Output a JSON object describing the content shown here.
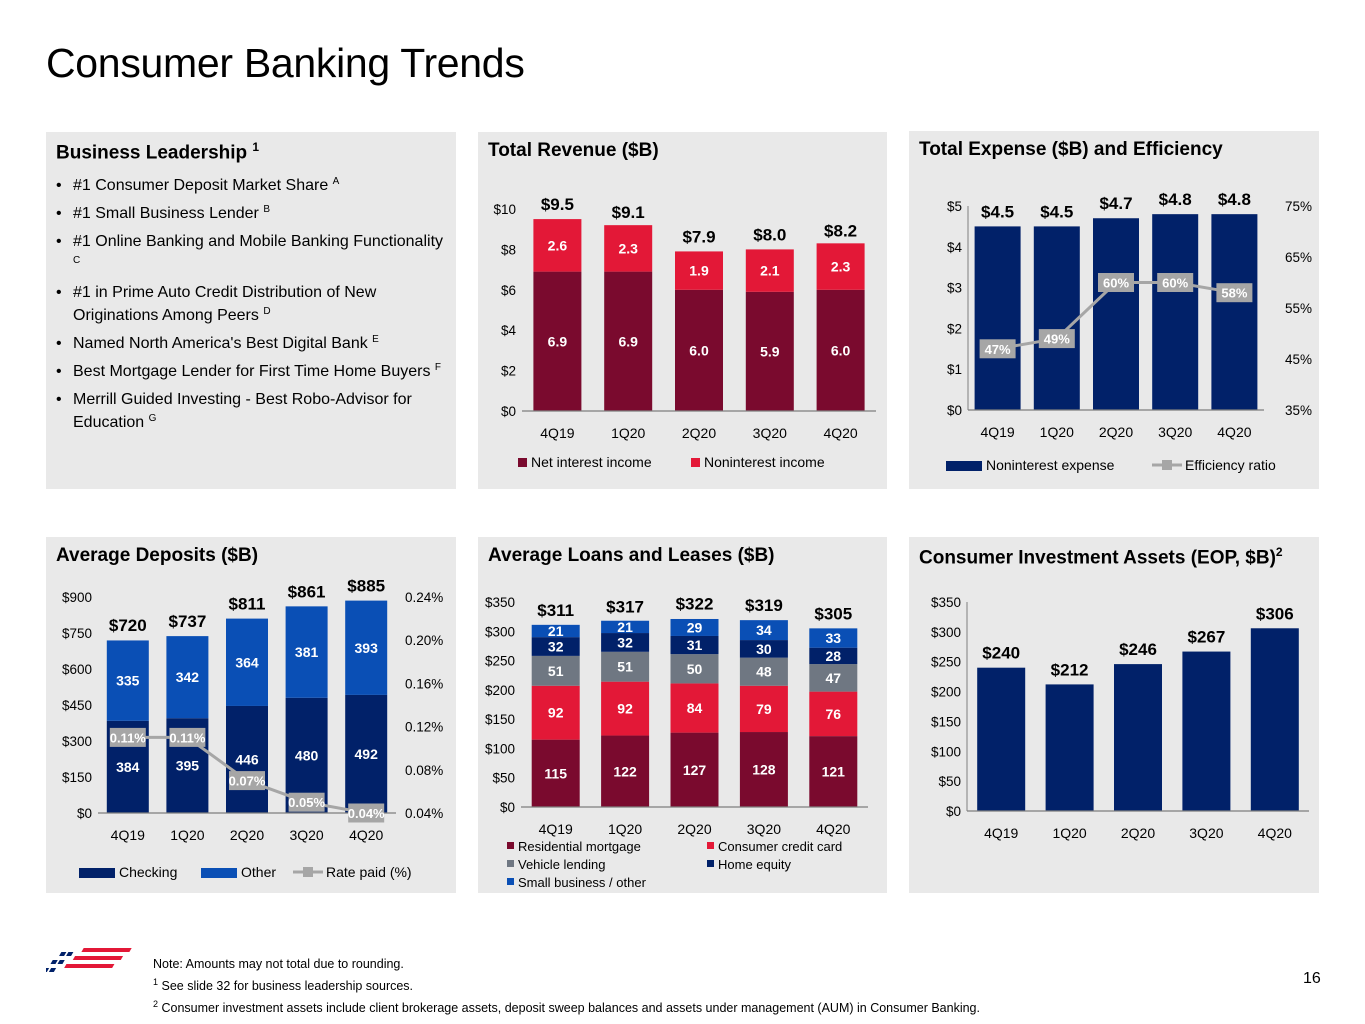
{
  "page": {
    "title": "Consumer Banking Trends",
    "page_number": "16",
    "notes": [
      "Note: Amounts may not total due to rounding.",
      "See slide 32 for business leadership sources.",
      "Consumer investment assets include client brokerage assets, deposit sweep balances and assets under management (AUM) in Consumer Banking."
    ],
    "note_markers": [
      "1",
      "2"
    ]
  },
  "colors": {
    "panel_bg": "#e9e9e9",
    "navy": "#012169",
    "dark_red": "#7a0a2e",
    "red": "#e31837",
    "blue": "#0a4fb5",
    "gray": "#6f7782",
    "line_gray": "#a6a6a6"
  },
  "leadership": {
    "title": "Business Leadership",
    "title_marker": "1",
    "items": [
      {
        "text": "#1 Consumer Deposit Market Share",
        "marker": "A"
      },
      {
        "text": "#1 Small Business Lender",
        "marker": "B"
      },
      {
        "text": "#1 Online Banking and Mobile Banking Functionality",
        "marker": "C"
      },
      {
        "text": "#1 in Prime Auto Credit Distribution of New Originations Among Peers",
        "marker": "D"
      },
      {
        "text": "Named North America's Best Digital Bank",
        "marker": "E"
      },
      {
        "text": "Best Mortgage Lender for First Time Home Buyers",
        "marker": "F"
      },
      {
        "text": "Merrill Guided Investing - Best Robo-Advisor for Education",
        "marker": "G"
      }
    ]
  },
  "chart_data": [
    {
      "id": "revenue",
      "type": "bar",
      "stacked": true,
      "title": "Total Revenue ($B)",
      "categories": [
        "4Q19",
        "1Q20",
        "2Q20",
        "3Q20",
        "4Q20"
      ],
      "series": [
        {
          "name": "Net interest income",
          "color": "#7a0a2e",
          "values": [
            6.9,
            6.9,
            6.0,
            5.9,
            6.0
          ],
          "labels": [
            "6.9",
            "6.9",
            "6.0",
            "5.9",
            "6.0"
          ]
        },
        {
          "name": "Noninterest income",
          "color": "#e31837",
          "values": [
            2.6,
            2.3,
            1.9,
            2.1,
            2.3
          ],
          "labels": [
            "2.6",
            "2.3",
            "1.9",
            "2.1",
            "2.3"
          ]
        }
      ],
      "totals": [
        "$9.5",
        "$9.1",
        "$7.9",
        "$8.0",
        "$8.2"
      ],
      "total_values": [
        9.5,
        9.1,
        7.9,
        8.0,
        8.2
      ],
      "ylim": [
        0,
        10
      ],
      "y_ticks": [
        0,
        2,
        4,
        6,
        8,
        10
      ],
      "y_tick_labels": [
        "$0",
        "$2",
        "$4",
        "$6",
        "$8",
        "$10"
      ],
      "legend": "bottom"
    },
    {
      "id": "expense",
      "type": "bar",
      "title": "Total Expense ($B) and Efficiency",
      "categories": [
        "4Q19",
        "1Q20",
        "2Q20",
        "3Q20",
        "4Q20"
      ],
      "series": [
        {
          "name": "Noninterest expense",
          "color": "#012169",
          "values": [
            4.5,
            4.5,
            4.7,
            4.8,
            4.8
          ],
          "labels": [
            "$4.5",
            "$4.5",
            "$4.7",
            "$4.8",
            "$4.8"
          ]
        }
      ],
      "line_series": {
        "name": "Efficiency ratio",
        "color": "#a6a6a6",
        "values": [
          47,
          49,
          60,
          60,
          58
        ],
        "labels": [
          "47%",
          "49%",
          "60%",
          "60%",
          "58%"
        ],
        "ylim": [
          35,
          75
        ]
      },
      "ylim": [
        0,
        5
      ],
      "y_ticks": [
        0,
        1,
        2,
        3,
        4,
        5
      ],
      "y_tick_labels": [
        "$0",
        "$1",
        "$2",
        "$3",
        "$4",
        "$5"
      ],
      "y2_ticks": [
        35,
        45,
        55,
        65,
        75
      ],
      "y2_tick_labels": [
        "35%",
        "45%",
        "55%",
        "65%",
        "75%"
      ],
      "legend": "bottom"
    },
    {
      "id": "deposits",
      "type": "bar",
      "stacked": true,
      "title": "Average Deposits ($B)",
      "categories": [
        "4Q19",
        "1Q20",
        "2Q20",
        "3Q20",
        "4Q20"
      ],
      "series": [
        {
          "name": "Checking",
          "color": "#012169",
          "values": [
            384,
            395,
            446,
            480,
            492
          ],
          "labels": [
            "384",
            "395",
            "446",
            "480",
            "492"
          ]
        },
        {
          "name": "Other",
          "color": "#0a4fb5",
          "values": [
            335,
            342,
            364,
            381,
            393
          ],
          "labels": [
            "335",
            "342",
            "364",
            "381",
            "393"
          ]
        }
      ],
      "totals": [
        "$720",
        "$737",
        "$811",
        "$861",
        "$885"
      ],
      "total_values": [
        720,
        737,
        811,
        861,
        885
      ],
      "line_series": {
        "name": "Rate paid (%)",
        "color": "#a6a6a6",
        "values": [
          0.11,
          0.11,
          0.07,
          0.05,
          0.04
        ],
        "labels": [
          "0.11%",
          "0.11%",
          "0.07%",
          "0.05%",
          "0.04%"
        ],
        "ylim": [
          0.04,
          0.24
        ]
      },
      "ylim": [
        0,
        900
      ],
      "y_ticks": [
        0,
        150,
        300,
        450,
        600,
        750,
        900
      ],
      "y_tick_labels": [
        "$0",
        "$150",
        "$300",
        "$450",
        "$600",
        "$750",
        "$900"
      ],
      "y2_ticks": [
        0.04,
        0.08,
        0.12,
        0.16,
        0.2,
        0.24
      ],
      "y2_tick_labels": [
        "0.04%",
        "0.08%",
        "0.12%",
        "0.16%",
        "0.20%",
        "0.24%"
      ],
      "legend": "bottom"
    },
    {
      "id": "loans",
      "type": "bar",
      "stacked": true,
      "title": "Average Loans and Leases ($B)",
      "categories": [
        "4Q19",
        "1Q20",
        "2Q20",
        "3Q20",
        "4Q20"
      ],
      "series": [
        {
          "name": "Residential mortgage",
          "color": "#7a0a2e",
          "values": [
            115,
            122,
            127,
            128,
            121
          ],
          "labels": [
            "115",
            "122",
            "127",
            "128",
            "121"
          ]
        },
        {
          "name": "Consumer credit card",
          "color": "#e31837",
          "values": [
            92,
            92,
            84,
            79,
            76
          ],
          "labels": [
            "92",
            "92",
            "84",
            "79",
            "76"
          ]
        },
        {
          "name": "Vehicle lending",
          "color": "#6f7782",
          "values": [
            51,
            51,
            50,
            48,
            47
          ],
          "labels": [
            "51",
            "51",
            "50",
            "48",
            "47"
          ]
        },
        {
          "name": "Home equity",
          "color": "#012169",
          "values": [
            32,
            32,
            31,
            30,
            28
          ],
          "labels": [
            "32",
            "32",
            "31",
            "30",
            "28"
          ]
        },
        {
          "name": "Small business / other",
          "color": "#0a4fb5",
          "values": [
            21,
            21,
            29,
            34,
            33
          ],
          "labels": [
            "21",
            "21",
            "29",
            "34",
            "33"
          ]
        }
      ],
      "totals": [
        "$311",
        "$317",
        "$322",
        "$319",
        "$305"
      ],
      "total_values": [
        311,
        317,
        322,
        319,
        305
      ],
      "ylim": [
        0,
        350
      ],
      "y_ticks": [
        0,
        50,
        100,
        150,
        200,
        250,
        300,
        350
      ],
      "y_tick_labels": [
        "$0",
        "$50",
        "$100",
        "$150",
        "$200",
        "$250",
        "$300",
        "$350"
      ],
      "legend": "bottom"
    },
    {
      "id": "investment",
      "type": "bar",
      "title": "Consumer Investment Assets (EOP, $B)",
      "title_marker": "2",
      "categories": [
        "4Q19",
        "1Q20",
        "2Q20",
        "3Q20",
        "4Q20"
      ],
      "series": [
        {
          "color": "#012169",
          "values": [
            240,
            212,
            246,
            267,
            306
          ],
          "labels": [
            "$240",
            "$212",
            "$246",
            "$267",
            "$306"
          ]
        }
      ],
      "ylim": [
        0,
        350
      ],
      "y_ticks": [
        0,
        50,
        100,
        150,
        200,
        250,
        300,
        350
      ],
      "y_tick_labels": [
        "$0",
        "$50",
        "$100",
        "$150",
        "$200",
        "$250",
        "$300",
        "$350"
      ]
    }
  ]
}
